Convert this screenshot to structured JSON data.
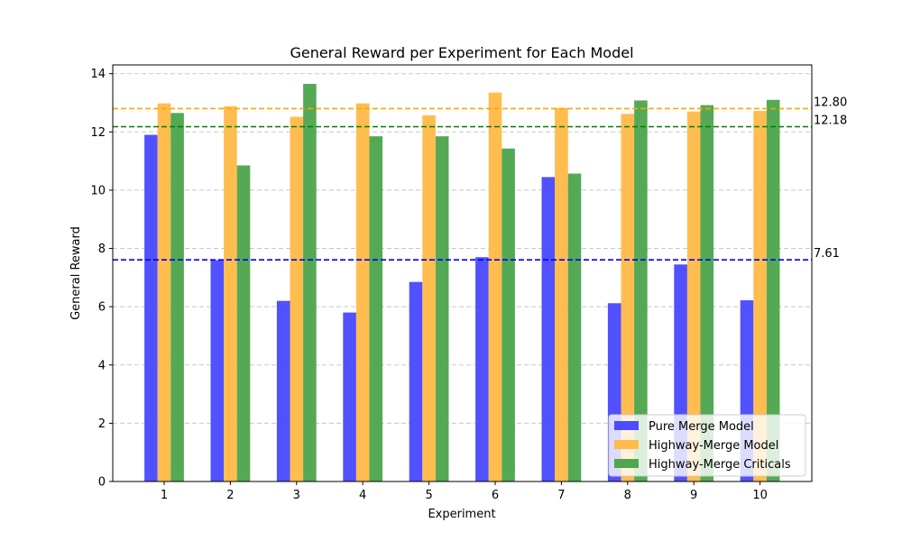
{
  "chart_data": {
    "type": "bar",
    "title": "General Reward per Experiment for Each Model",
    "xlabel": "Experiment",
    "ylabel": "General Reward",
    "categories": [
      "1",
      "2",
      "3",
      "4",
      "5",
      "6",
      "7",
      "8",
      "9",
      "10"
    ],
    "ylim": [
      0,
      14.3
    ],
    "yticks": [
      "0",
      "2",
      "4",
      "6",
      "8",
      "10",
      "12",
      "14"
    ],
    "grid": "horizontal dashed",
    "legend_position": "bottom-right",
    "series": [
      {
        "name": "Pure Merge Model",
        "color": "#4b4bff",
        "values": [
          11.9,
          7.6,
          6.2,
          5.8,
          6.85,
          7.7,
          10.45,
          6.12,
          7.45,
          6.22
        ]
      },
      {
        "name": "Highway-Merge Model",
        "color": "#ffbb4a",
        "values": [
          12.98,
          12.88,
          12.52,
          12.98,
          12.57,
          13.35,
          12.82,
          12.62,
          12.7,
          12.72
        ]
      },
      {
        "name": "Highway-Merge Criticals",
        "color": "#4fa64f",
        "values": [
          12.65,
          10.85,
          13.65,
          11.85,
          11.85,
          11.43,
          10.57,
          13.08,
          12.92,
          13.1
        ]
      }
    ],
    "reference_lines": [
      {
        "value": 12.8,
        "label": "12.80",
        "color": "#ffa500"
      },
      {
        "value": 12.18,
        "label": "12.18",
        "color": "#008000"
      },
      {
        "value": 7.61,
        "label": "7.61",
        "color": "#0000ff"
      }
    ]
  }
}
